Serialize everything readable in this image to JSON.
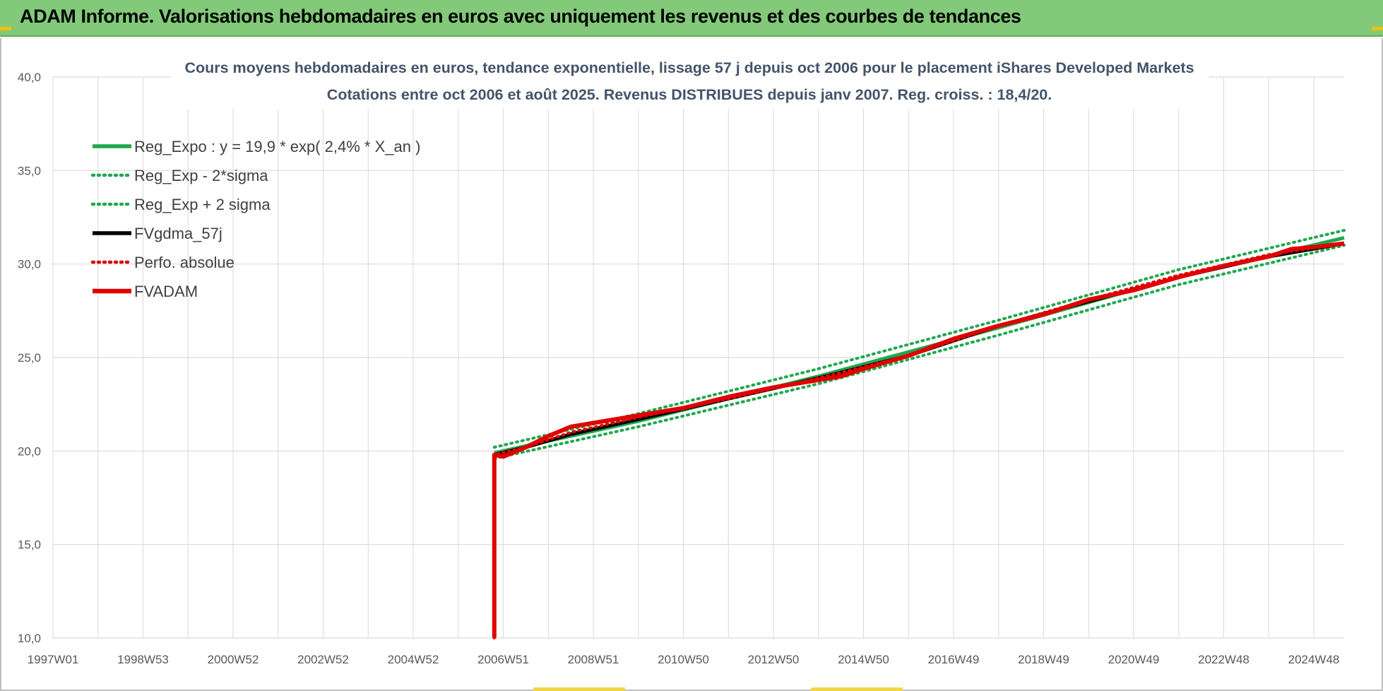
{
  "page": {
    "banner_title": "ADAM Informe. Valorisations hebdomadaires en euros avec uniquement les revenus et des courbes de tendances"
  },
  "chart_data": {
    "type": "line",
    "title": "Cours moyens hebdomadaires en euros, tendance exponentielle, lissage 57 j depuis oct 2006 pour le placement iShares Developed Markets",
    "subtitle": "Cotations entre oct 2006 et août 2025. Revenus DISTRIBUES depuis janv 2007. Reg. croiss. : 18,4/20.",
    "xlabel": "",
    "ylabel": "",
    "x_tick_labels": [
      "1997W01",
      "1998W53",
      "2000W52",
      "2002W52",
      "2004W52",
      "2006W51",
      "2008W51",
      "2010W50",
      "2012W50",
      "2014W50",
      "2016W49",
      "2018W49",
      "2020W49",
      "2022W48",
      "2024W48"
    ],
    "x_range": [
      1997.0,
      2025.67
    ],
    "ylim": [
      10.0,
      40.0
    ],
    "y_ticks": [
      "10,0",
      "15,0",
      "20,0",
      "25,0",
      "30,0",
      "35,0",
      "40,0"
    ],
    "y_tick_values": [
      10,
      15,
      20,
      25,
      30,
      35,
      40
    ],
    "grid": true,
    "legend_position": "top-left",
    "series": [
      {
        "name": "Reg_Expo : y = 19,9 * exp( 2,4% *  X_an )",
        "color": "#1fa84f",
        "style": "solid",
        "x": [
          2006.8,
          2010,
          2014,
          2018,
          2022,
          2025.67
        ],
        "values": [
          19.9,
          21.6,
          24.0,
          26.6,
          29.3,
          31.4
        ]
      },
      {
        "name": "Reg_Exp - 2*sigma",
        "color": "#1fa84f",
        "style": "dotted",
        "x": [
          2006.8,
          2010,
          2014,
          2018,
          2022,
          2025.67
        ],
        "values": [
          19.6,
          21.3,
          23.6,
          26.2,
          28.9,
          31.0
        ]
      },
      {
        "name": "Reg_Exp + 2 sigma",
        "color": "#1fa84f",
        "style": "dotted",
        "x": [
          2006.8,
          2010,
          2014,
          2018,
          2022,
          2025.67
        ],
        "values": [
          20.2,
          22.0,
          24.4,
          27.0,
          29.7,
          31.8
        ]
      },
      {
        "name": "FVgdma_57j",
        "color": "#000000",
        "style": "solid",
        "x": [
          2006.8,
          2007.5,
          2008.5,
          2010,
          2012,
          2014,
          2016,
          2018,
          2020,
          2022,
          2024,
          2025.67
        ],
        "values": [
          19.8,
          20.2,
          20.9,
          21.7,
          22.8,
          23.9,
          25.1,
          26.7,
          28.0,
          29.3,
          30.4,
          31.1
        ]
      },
      {
        "name": "Perfo. absolue",
        "color": "#e00000",
        "style": "dotted",
        "x": [
          2006.8,
          2006.8,
          2007.5,
          2008.5,
          2010,
          2012,
          2014,
          2016,
          2018,
          2020,
          2022,
          2024,
          2025.67
        ],
        "values": [
          10.0,
          19.8,
          20.2,
          21.0,
          21.8,
          22.8,
          23.9,
          25.1,
          26.7,
          28.1,
          29.4,
          30.5,
          31.1
        ]
      },
      {
        "name": "FVADAM",
        "color": "#e00000",
        "style": "solid-thick",
        "x": [
          2006.8,
          2006.8,
          2007.0,
          2007.5,
          2008.0,
          2008.5,
          2009.0,
          2010.0,
          2011.0,
          2012.0,
          2013.0,
          2014.0,
          2014.5,
          2015.0,
          2016.0,
          2017.0,
          2018.0,
          2019.0,
          2020.0,
          2021.0,
          2022.0,
          2023.0,
          2024.0,
          2024.5,
          2025.0,
          2025.67
        ],
        "values": [
          10.0,
          19.8,
          19.7,
          20.2,
          20.8,
          21.3,
          21.5,
          21.9,
          22.3,
          22.9,
          23.4,
          23.8,
          24.0,
          24.4,
          25.1,
          26.0,
          26.7,
          27.3,
          28.1,
          28.6,
          29.3,
          29.9,
          30.4,
          30.8,
          30.9,
          31.1
        ]
      }
    ]
  }
}
